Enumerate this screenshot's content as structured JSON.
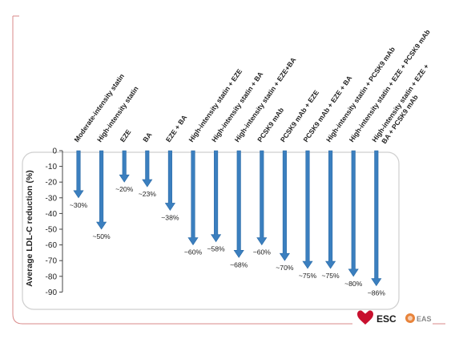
{
  "chart_data": {
    "type": "bar",
    "orientation": "vertical-arrows-downward",
    "ylabel": "Average LDL-C reduction (%)",
    "ylim": [
      -90,
      0
    ],
    "yticks": [
      0,
      -10,
      -20,
      -30,
      -40,
      -50,
      -60,
      -70,
      -80,
      -90
    ],
    "grid": false,
    "categories": [
      [
        "Moderate-intensity statin"
      ],
      [
        "High-intensity statin"
      ],
      [
        "EZE"
      ],
      [
        "BA"
      ],
      [
        "EZE + BA"
      ],
      [
        "High-intensity statin + EZE"
      ],
      [
        "High-intensity statin + BA"
      ],
      [
        "High-intensity statin + EZE+BA"
      ],
      [
        "PCSK9 mAb"
      ],
      [
        "PCSK9 mAb + EZE"
      ],
      [
        "PCSK9 mAb + EZE + BA"
      ],
      [
        "High-intensity statin + PCSK9 mAb"
      ],
      [
        "High-intensity statin + EZE + PCSK9 mAb"
      ],
      [
        "High-intensity statin + EZE +",
        "BA + PCSK9 mAb"
      ]
    ],
    "values": [
      -30,
      -50,
      -20,
      -23,
      -38,
      -60,
      -58,
      -68,
      -60,
      -70,
      -75,
      -75,
      -80,
      -86
    ],
    "value_labels": [
      "~30%",
      "~50%",
      "~20%",
      "~23%",
      "~38%",
      "~60%",
      "~58%",
      "~68%",
      "~60%",
      "~70%",
      "~75%",
      "~75%",
      "~80%",
      "~86%"
    ],
    "bar_color": "#3b7fbf"
  },
  "logos": {
    "esc_text": "ESC",
    "eas_text": "EAS",
    "esc_color": "#c8102e",
    "eas_color": "#e8833a"
  }
}
